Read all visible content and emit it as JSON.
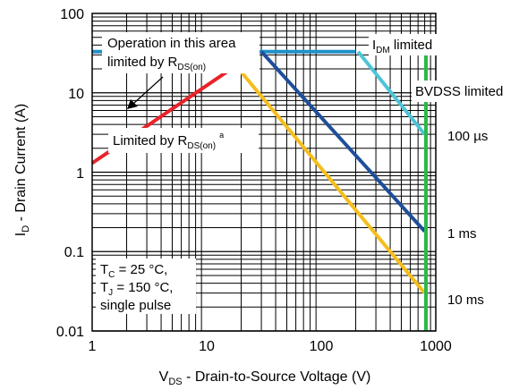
{
  "chart_data": {
    "type": "line",
    "xscale": "log",
    "yscale": "log",
    "xlim": [
      1,
      1000
    ],
    "ylim": [
      0.01,
      100
    ],
    "grid": true,
    "x_ticks": [
      "1",
      "10",
      "100",
      "1000"
    ],
    "y_ticks": [
      "0.01",
      "0.1",
      "1",
      "10",
      "100"
    ],
    "xlabel": {
      "main": "V",
      "sub": "DS",
      "rest": " - Drain-to-Source Voltage (V)"
    },
    "ylabel": {
      "main": "I",
      "sub": "D",
      "rest": " - Drain Current (A)"
    },
    "series": [
      {
        "name": "",
        "color": "#e8232a",
        "x": [
          1,
          18
        ],
        "y": [
          1.3,
          22
        ]
      },
      {
        "name": "",
        "color": "#1e90c8",
        "x": [
          1,
          200
        ],
        "y": [
          33,
          33
        ]
      },
      {
        "name": "100 µs",
        "color": "#4ec4d8",
        "x": [
          210,
          800
        ],
        "y": [
          33,
          3
        ]
      },
      {
        "name": "1 ms",
        "color": "#1f4e9a",
        "x": [
          30,
          800
        ],
        "y": [
          33,
          0.18
        ]
      },
      {
        "name": "10 ms",
        "color": "#f5be1d",
        "x": [
          18,
          800
        ],
        "y": [
          22,
          0.03
        ]
      },
      {
        "name": "",
        "color": "#2db84a",
        "x": [
          820,
          820
        ],
        "y": [
          0.01,
          33
        ]
      }
    ],
    "annotations": {
      "operation_line1": "Operation in this area",
      "operation_line2_pre": "limited by R",
      "operation_line2_sub": "DS(on)",
      "idm_main": "I",
      "idm_sub": "DM",
      "idm_rest": " limited",
      "bvdss": "BVDSS limited",
      "limited_pre": "Limited by R",
      "limited_sub": "DS(on)",
      "limited_sup": "a",
      "label_100us": "100 µs",
      "label_1ms": "1 ms",
      "label_10ms": "10 ms",
      "tc_main": "T",
      "tc_sub": "C",
      "tc_rest": " = 25 °C,",
      "tj_main": "T",
      "tj_sub": "J",
      "tj_rest": " = 150 °C,",
      "single_pulse": "single pulse"
    }
  }
}
